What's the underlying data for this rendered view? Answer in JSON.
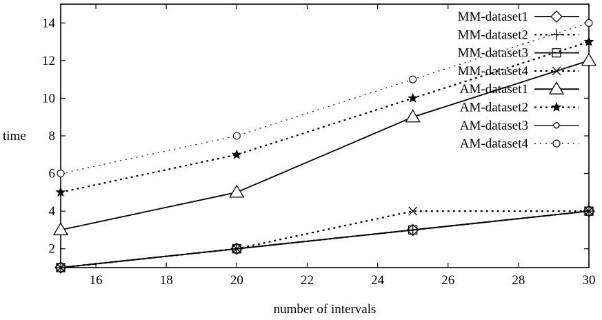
{
  "chart_data": {
    "type": "line",
    "title": "",
    "xlabel": "number of intervals",
    "ylabel": "time",
    "x": [
      15,
      20,
      25,
      30
    ],
    "xlim": [
      15,
      30
    ],
    "ylim": [
      1,
      15
    ],
    "xticks": [
      16,
      18,
      20,
      22,
      24,
      26,
      28,
      30
    ],
    "yticks": [
      2,
      4,
      6,
      8,
      10,
      12,
      14
    ],
    "grid": false,
    "legend_position": "top-right",
    "series": [
      {
        "name": "MM-dataset1",
        "values": [
          1,
          2,
          3,
          4
        ],
        "marker": "diamond",
        "line": "solid"
      },
      {
        "name": "MM-dataset2",
        "values": [
          1,
          2,
          3,
          4
        ],
        "marker": "plus",
        "line": "dotted"
      },
      {
        "name": "MM-dataset3",
        "values": [
          1,
          2,
          3,
          4
        ],
        "marker": "square",
        "line": "solid"
      },
      {
        "name": "MM-dataset4",
        "values": [
          1,
          2,
          4,
          4
        ],
        "marker": "cross",
        "line": "dotted"
      },
      {
        "name": "AM-dataset1",
        "values": [
          3,
          5,
          9,
          12
        ],
        "marker": "triangle",
        "line": "solid"
      },
      {
        "name": "AM-dataset2",
        "values": [
          5,
          7,
          10,
          13
        ],
        "marker": "star",
        "line": "dotted"
      },
      {
        "name": "AM-dataset3",
        "values": [
          null,
          null,
          null,
          14
        ],
        "marker": "circle-small",
        "line": "solid"
      },
      {
        "name": "AM-dataset4",
        "values": [
          6,
          8,
          11,
          14
        ],
        "marker": "circle",
        "line": "dotted"
      }
    ]
  }
}
